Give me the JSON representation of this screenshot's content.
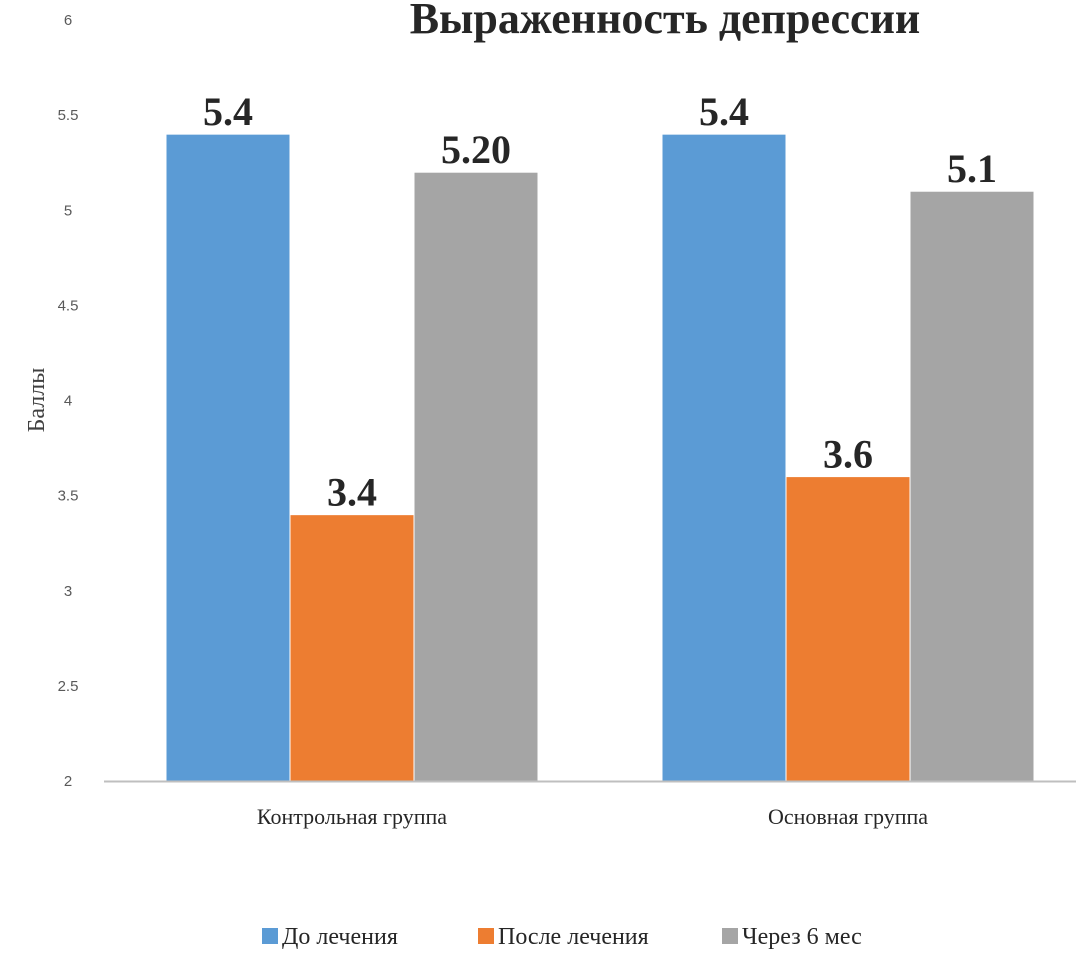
{
  "chart_data": {
    "type": "bar",
    "title": "Выраженность депрессии",
    "ylabel": "Баллы",
    "xlabel": "",
    "categories": [
      "Контрольная группа",
      "Основная группа"
    ],
    "series": [
      {
        "name": "До лечения",
        "values": [
          5.4,
          5.4
        ],
        "labels": [
          "5.4",
          "5.4"
        ],
        "color": "#5b9bd5"
      },
      {
        "name": "После лечения",
        "values": [
          3.4,
          3.6
        ],
        "labels": [
          "3.4",
          "3.6"
        ],
        "color": "#ed7d31"
      },
      {
        "name": "Через 6 мес",
        "values": [
          5.2,
          5.1
        ],
        "labels": [
          "5.20",
          "5.1"
        ],
        "color": "#a5a5a5"
      }
    ],
    "ylim": [
      2,
      6
    ],
    "yticks": [
      "2",
      "2.5",
      "3",
      "3.5",
      "4",
      "4.5",
      "5",
      "5.5",
      "6"
    ],
    "grid": false,
    "legend_position": "bottom"
  }
}
